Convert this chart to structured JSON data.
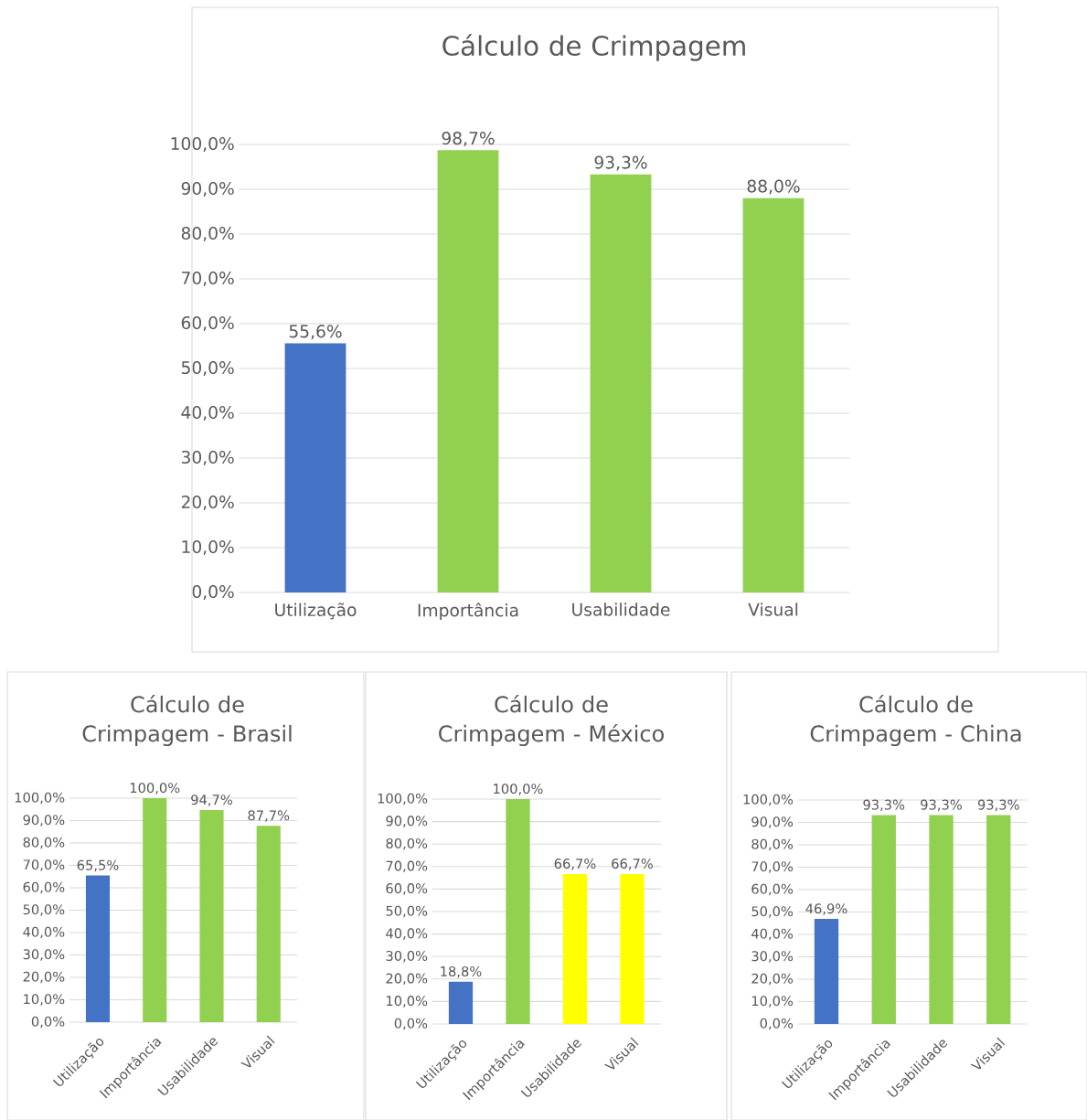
{
  "chart_data": [
    {
      "type": "bar",
      "title": "Cálculo de Crimpagem",
      "categories": [
        "Utilização",
        "Importância",
        "Usabilidade",
        "Visual"
      ],
      "values": [
        55.6,
        98.7,
        93.3,
        88.0
      ],
      "colors": [
        "#4472c4",
        "#92d050",
        "#92d050",
        "#92d050"
      ],
      "value_labels": [
        "55,6%",
        "98,7%",
        "93,3%",
        "88,0%"
      ],
      "ylim": [
        0,
        100
      ],
      "yticks": [
        {
          "value": 0,
          "label": "0,0%"
        },
        {
          "value": 10,
          "label": "10,0%"
        },
        {
          "value": 20,
          "label": "20,0%"
        },
        {
          "value": 30,
          "label": "30,0%"
        },
        {
          "value": 40,
          "label": "40,0%"
        },
        {
          "value": 50,
          "label": "50,0%"
        },
        {
          "value": 60,
          "label": "60,0%"
        },
        {
          "value": 70,
          "label": "70,0%"
        },
        {
          "value": 80,
          "label": "80,0%"
        },
        {
          "value": 90,
          "label": "90,0%"
        },
        {
          "value": 100,
          "label": "100,0%"
        }
      ],
      "grid": "y"
    },
    {
      "type": "bar",
      "title": "Cálculo de Crimpagem - Brasil",
      "categories": [
        "Utilização",
        "Importância",
        "Usabilidade",
        "Visual"
      ],
      "values": [
        65.5,
        100.0,
        94.7,
        87.7
      ],
      "colors": [
        "#4472c4",
        "#92d050",
        "#92d050",
        "#92d050"
      ],
      "value_labels": [
        "65,5%",
        "100,0%",
        "94,7%",
        "87,7%"
      ],
      "ylim": [
        0,
        100
      ],
      "yticks": [
        {
          "value": 0,
          "label": "0,0%"
        },
        {
          "value": 10,
          "label": "10,0%"
        },
        {
          "value": 20,
          "label": "20,0%"
        },
        {
          "value": 30,
          "label": "30,0%"
        },
        {
          "value": 40,
          "label": "40,0%"
        },
        {
          "value": 50,
          "label": "50,0%"
        },
        {
          "value": 60,
          "label": "60,0%"
        },
        {
          "value": 70,
          "label": "70,0%"
        },
        {
          "value": 80,
          "label": "80,0%"
        },
        {
          "value": 90,
          "label": "90,0%"
        },
        {
          "value": 100,
          "label": "100,0%"
        }
      ],
      "grid": "y"
    },
    {
      "type": "bar",
      "title": "Cálculo de Crimpagem - México",
      "categories": [
        "Utilização",
        "Importância",
        "Usabilidade",
        "Visual"
      ],
      "values": [
        18.8,
        100.0,
        66.7,
        66.7
      ],
      "colors": [
        "#4472c4",
        "#92d050",
        "#ffff00",
        "#ffff00"
      ],
      "value_labels": [
        "18,8%",
        "100,0%",
        "66,7%",
        "66,7%"
      ],
      "ylim": [
        0,
        100
      ],
      "yticks": [
        {
          "value": 0,
          "label": "0,0%"
        },
        {
          "value": 10,
          "label": "10,0%"
        },
        {
          "value": 20,
          "label": "20,0%"
        },
        {
          "value": 30,
          "label": "30,0%"
        },
        {
          "value": 40,
          "label": "40,0%"
        },
        {
          "value": 50,
          "label": "50,0%"
        },
        {
          "value": 60,
          "label": "60,0%"
        },
        {
          "value": 70,
          "label": "70,0%"
        },
        {
          "value": 80,
          "label": "80,0%"
        },
        {
          "value": 90,
          "label": "90,0%"
        },
        {
          "value": 100,
          "label": "100,0%"
        }
      ],
      "grid": "y"
    },
    {
      "type": "bar",
      "title": "Cálculo de Crimpagem - China",
      "categories": [
        "Utilização",
        "Importância",
        "Usabilidade",
        "Visual"
      ],
      "values": [
        46.9,
        93.3,
        93.3,
        93.3
      ],
      "colors": [
        "#4472c4",
        "#92d050",
        "#92d050",
        "#92d050"
      ],
      "value_labels": [
        "46,9%",
        "93,3%",
        "93,3%",
        "93,3%"
      ],
      "ylim": [
        0,
        100
      ],
      "yticks": [
        {
          "value": 0,
          "label": "0,0%"
        },
        {
          "value": 10,
          "label": "10,0%"
        },
        {
          "value": 20,
          "label": "20,0%"
        },
        {
          "value": 30,
          "label": "30,0%"
        },
        {
          "value": 40,
          "label": "40,0%"
        },
        {
          "value": 50,
          "label": "50,0%"
        },
        {
          "value": 60,
          "label": "60,0%"
        },
        {
          "value": 70,
          "label": "70,0%"
        },
        {
          "value": 80,
          "label": "80,0%"
        },
        {
          "value": 90,
          "label": "90,0%"
        },
        {
          "value": 100,
          "label": "100,0%"
        }
      ],
      "grid": "y"
    }
  ]
}
